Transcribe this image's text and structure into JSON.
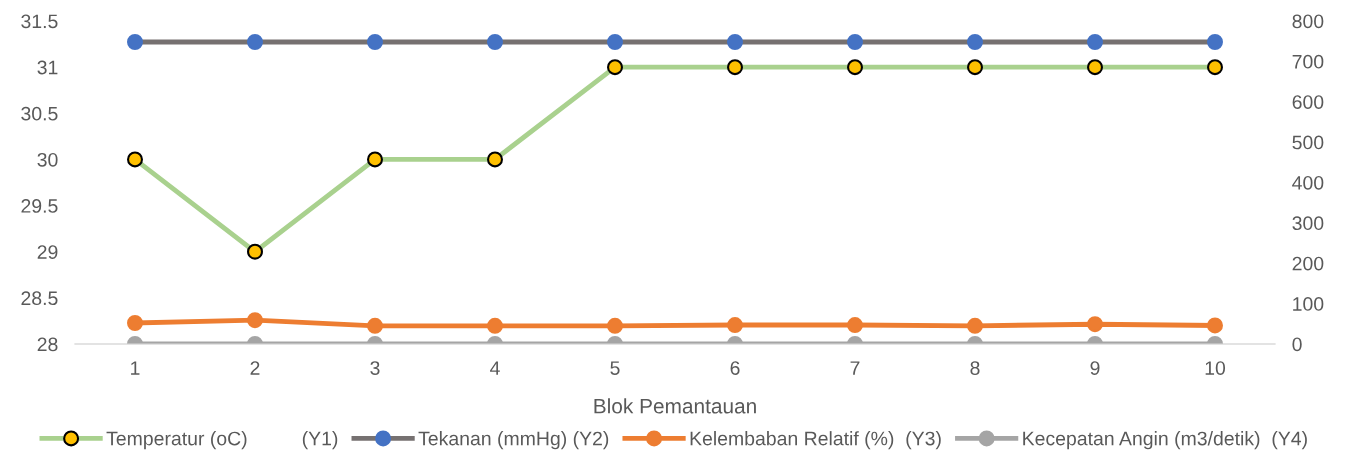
{
  "chart_data": {
    "type": "line",
    "xlabel": "Blok Pemantauan",
    "categories": [
      "1",
      "2",
      "3",
      "4",
      "5",
      "6",
      "7",
      "8",
      "9",
      "10"
    ],
    "series": [
      {
        "name": "Temperatur (oC)          (Y1)",
        "color": "#a9d18e",
        "colors": [
          "#ffc000",
          "#ffc000",
          "#ffc000",
          "#ffc000",
          "#ffc000",
          "#ffc000",
          "#ffc000",
          "#ffc000",
          "#ffc000",
          "#ffc000"
        ],
        "values": [
          30,
          29,
          30,
          30,
          31,
          31,
          31,
          31,
          31,
          31
        ]
      },
      {
        "name": "Tekanan (mmHg) (Y2)",
        "color": "#767171",
        "colors": [
          "#4472c4",
          "#4472c4",
          "#4472c4",
          "#4472c4",
          "#4472c4",
          "#4472c4",
          "#4472c4",
          "#4472c4",
          "#4472c4",
          "#4472c4"
        ],
        "axis": "y2",
        "values": [
          748,
          748,
          748,
          748,
          748,
          748,
          748,
          748,
          748,
          748
        ]
      },
      {
        "name": "Kelembaban Relatif (%)  (Y3)",
        "color": "#ed7d31",
        "axis": "y2",
        "values": [
          52,
          59,
          45,
          45,
          45,
          47,
          47,
          45,
          49,
          46
        ]
      },
      {
        "name": "Kecepatan Angin (m3/detik)  (Y4)",
        "color": "#a5a5a5",
        "axis": "y2",
        "values": [
          0,
          0,
          0,
          0,
          0,
          0,
          0,
          0,
          0,
          0
        ]
      }
    ],
    "ylim": [
      28,
      31.5
    ],
    "yticks": [
      {
        "value": 28,
        "label": "28"
      },
      {
        "value": 28.5,
        "label": "28.5"
      },
      {
        "value": 29,
        "label": "29"
      },
      {
        "value": 29.5,
        "label": "29.5"
      },
      {
        "value": 30,
        "label": "30"
      },
      {
        "value": 30.5,
        "label": "30.5"
      },
      {
        "value": 31,
        "label": "31"
      },
      {
        "value": 31.5,
        "label": "31.5"
      }
    ],
    "y2lim": [
      0,
      800
    ],
    "y2ticks": [
      0,
      100,
      200,
      300,
      400,
      500,
      600,
      700,
      800
    ],
    "marker": "circle",
    "line_style": "solid",
    "grid": false,
    "legend": "bottom"
  }
}
